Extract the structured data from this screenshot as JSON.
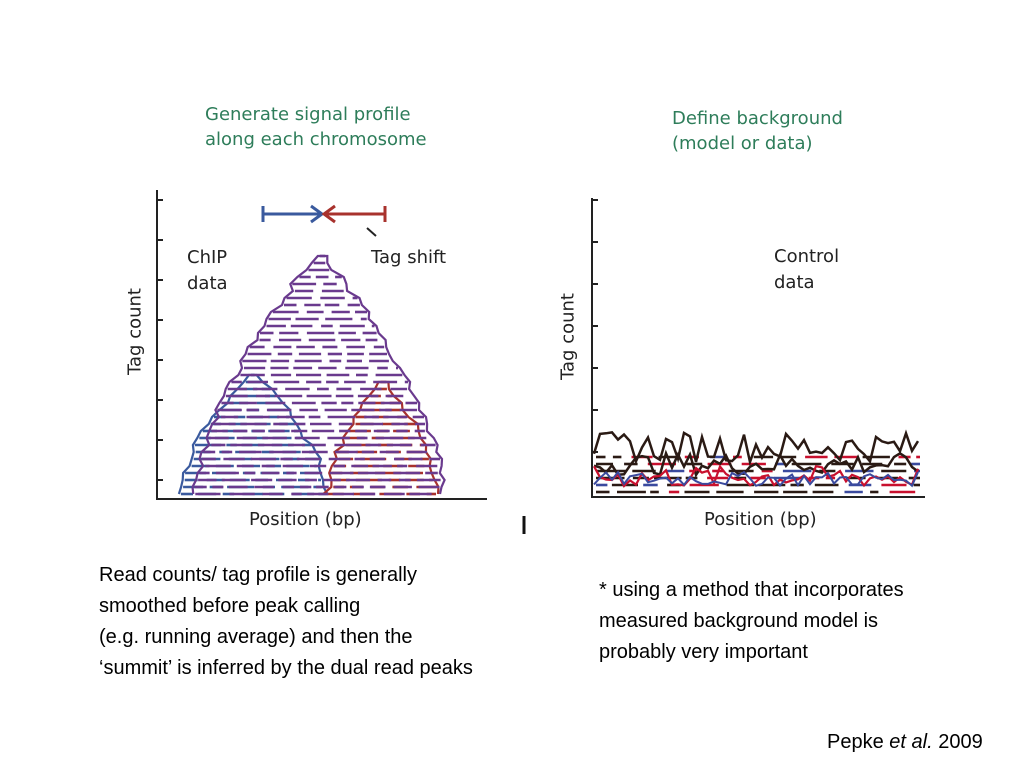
{
  "left_panel": {
    "title_lines": [
      "Generate signal profile",
      "along each chromosome"
    ],
    "data_label_lines": [
      "ChIP",
      "data"
    ],
    "annotation": "Tag shift",
    "ylabel": "Tag count",
    "xlabel": "Position (bp)"
  },
  "right_panel": {
    "title_lines": [
      "Define background",
      "(model or data)"
    ],
    "data_label_lines": [
      "Control",
      "data"
    ],
    "ylabel": "Tag count",
    "xlabel": "Position (bp)"
  },
  "captions": {
    "left_lines": [
      "Read counts/ tag profile is generally",
      "smoothed before peak calling",
      "(e.g. running average) and then the",
      "‘summit’ is inferred by the dual read peaks"
    ],
    "right_lines": [
      "* using a method that incorporates",
      "measured background model is",
      "probably very important"
    ]
  },
  "citation": {
    "author": "Pepke",
    "etal": "et al.",
    "year": "2009"
  },
  "colors": {
    "title_green": "#2e7d5a",
    "forward_blue": "#3a5a9e",
    "summit_purple": "#6a3a8e",
    "reverse_red": "#a8322d",
    "control_black": "#2a1a14",
    "control_red": "#c8102e",
    "control_blue": "#3a4a9e"
  }
}
